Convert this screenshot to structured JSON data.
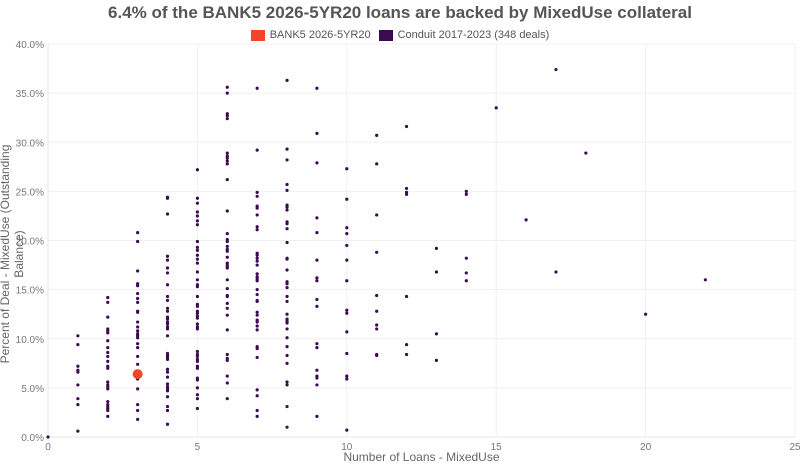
{
  "chart_data": {
    "type": "scatter",
    "title": "6.4% of the BANK5 2026-5YR20 loans are backed by MixedUse collateral",
    "xlabel": "Number of Loans - MixedUse",
    "ylabel": "Percent of Deal - MixedUse (Outstanding Balance)",
    "xlim": [
      0,
      25
    ],
    "ylim": [
      0,
      40
    ],
    "x_ticks": [
      "0",
      "5",
      "10",
      "15",
      "20",
      "25"
    ],
    "y_ticks": [
      "0.0%",
      "5.0%",
      "10.0%",
      "15.0%",
      "20.0%",
      "25.0%",
      "30.0%",
      "35.0%",
      "40.0%"
    ],
    "grid": true,
    "legend_position": "top",
    "series": [
      {
        "name": "BANK5 2026-5YR20",
        "color": "#f4452a",
        "points": [
          [
            3,
            6.4
          ]
        ]
      },
      {
        "name": "Conduit 2017-2023 (348 deals)",
        "color": "#3d0a52",
        "points": [
          [
            0,
            0.0
          ],
          [
            1,
            10.3
          ],
          [
            1,
            9.4
          ],
          [
            1,
            7.2
          ],
          [
            1,
            6.8
          ],
          [
            1,
            6.6
          ],
          [
            1,
            5.3
          ],
          [
            1,
            3.9
          ],
          [
            1,
            3.3
          ],
          [
            1,
            0.6
          ],
          [
            2,
            14.2
          ],
          [
            2,
            13.7
          ],
          [
            2,
            12.2
          ],
          [
            2,
            11.0
          ],
          [
            2,
            10.8
          ],
          [
            2,
            10.6
          ],
          [
            2,
            9.8
          ],
          [
            2,
            9.1
          ],
          [
            2,
            8.6
          ],
          [
            2,
            8.2
          ],
          [
            2,
            7.7
          ],
          [
            2,
            7.2
          ],
          [
            2,
            7.0
          ],
          [
            2,
            5.6
          ],
          [
            2,
            5.3
          ],
          [
            2,
            5.1
          ],
          [
            2,
            4.9
          ],
          [
            2,
            3.6
          ],
          [
            2,
            3.3
          ],
          [
            2,
            3.1
          ],
          [
            2,
            2.9
          ],
          [
            2,
            2.7
          ],
          [
            2,
            2.1
          ],
          [
            3,
            20.8
          ],
          [
            3,
            19.9
          ],
          [
            3,
            16.9
          ],
          [
            3,
            15.6
          ],
          [
            3,
            15.4
          ],
          [
            3,
            14.6
          ],
          [
            3,
            14.1
          ],
          [
            3,
            13.7
          ],
          [
            3,
            12.8
          ],
          [
            3,
            12.7
          ],
          [
            3,
            11.7
          ],
          [
            3,
            11.2
          ],
          [
            3,
            10.8
          ],
          [
            3,
            10.5
          ],
          [
            3,
            10.3
          ],
          [
            3,
            10.1
          ],
          [
            3,
            9.5
          ],
          [
            3,
            9.1
          ],
          [
            3,
            8.2
          ],
          [
            3,
            7.4
          ],
          [
            3,
            5.9
          ],
          [
            3,
            4.9
          ],
          [
            3,
            3.3
          ],
          [
            3,
            2.7
          ],
          [
            3,
            1.8
          ],
          [
            4,
            24.4
          ],
          [
            4,
            24.3
          ],
          [
            4,
            22.7
          ],
          [
            4,
            18.4
          ],
          [
            4,
            18.0
          ],
          [
            4,
            17.2
          ],
          [
            4,
            16.7
          ],
          [
            4,
            15.5
          ],
          [
            4,
            14.3
          ],
          [
            4,
            13.9
          ],
          [
            4,
            13.1
          ],
          [
            4,
            12.8
          ],
          [
            4,
            12.2
          ],
          [
            4,
            12.0
          ],
          [
            4,
            11.7
          ],
          [
            4,
            11.5
          ],
          [
            4,
            11.2
          ],
          [
            4,
            11.0
          ],
          [
            4,
            10.3
          ],
          [
            4,
            8.5
          ],
          [
            4,
            8.3
          ],
          [
            4,
            8.1
          ],
          [
            4,
            7.9
          ],
          [
            4,
            6.9
          ],
          [
            4,
            6.6
          ],
          [
            4,
            6.1
          ],
          [
            4,
            5.4
          ],
          [
            4,
            5.1
          ],
          [
            4,
            4.9
          ],
          [
            4,
            4.7
          ],
          [
            4,
            4.1
          ],
          [
            4,
            3.1
          ],
          [
            4,
            2.7
          ],
          [
            4,
            1.3
          ],
          [
            5,
            27.2
          ],
          [
            5,
            24.3
          ],
          [
            5,
            23.8
          ],
          [
            5,
            22.9
          ],
          [
            5,
            22.5
          ],
          [
            5,
            22.0
          ],
          [
            5,
            21.6
          ],
          [
            5,
            19.9
          ],
          [
            5,
            19.3
          ],
          [
            5,
            19.0
          ],
          [
            5,
            18.5
          ],
          [
            5,
            18.1
          ],
          [
            5,
            17.7
          ],
          [
            5,
            16.8
          ],
          [
            5,
            16.0
          ],
          [
            5,
            15.5
          ],
          [
            5,
            15.3
          ],
          [
            5,
            14.3
          ],
          [
            5,
            13.5
          ],
          [
            5,
            13.3
          ],
          [
            5,
            12.8
          ],
          [
            5,
            12.6
          ],
          [
            5,
            12.3
          ],
          [
            5,
            12.1
          ],
          [
            5,
            11.5
          ],
          [
            5,
            11.2
          ],
          [
            5,
            11.0
          ],
          [
            5,
            8.7
          ],
          [
            5,
            8.4
          ],
          [
            5,
            8.2
          ],
          [
            5,
            7.9
          ],
          [
            5,
            7.7
          ],
          [
            5,
            7.2
          ],
          [
            5,
            7.0
          ],
          [
            5,
            6.0
          ],
          [
            5,
            5.8
          ],
          [
            5,
            5.0
          ],
          [
            5,
            4.3
          ],
          [
            5,
            3.9
          ],
          [
            5,
            2.9
          ],
          [
            6,
            35.6
          ],
          [
            6,
            35.0
          ],
          [
            6,
            32.9
          ],
          [
            6,
            32.7
          ],
          [
            6,
            32.4
          ],
          [
            6,
            28.9
          ],
          [
            6,
            28.6
          ],
          [
            6,
            28.4
          ],
          [
            6,
            28.1
          ],
          [
            6,
            27.8
          ],
          [
            6,
            26.2
          ],
          [
            6,
            23.0
          ],
          [
            6,
            20.7
          ],
          [
            6,
            20.1
          ],
          [
            6,
            19.9
          ],
          [
            6,
            19.4
          ],
          [
            6,
            19.1
          ],
          [
            6,
            18.9
          ],
          [
            6,
            18.3
          ],
          [
            6,
            17.7
          ],
          [
            6,
            17.5
          ],
          [
            6,
            17.3
          ],
          [
            6,
            17.2
          ],
          [
            6,
            16.0
          ],
          [
            6,
            15.1
          ],
          [
            6,
            14.4
          ],
          [
            6,
            14.3
          ],
          [
            6,
            13.6
          ],
          [
            6,
            13.1
          ],
          [
            6,
            12.4
          ],
          [
            6,
            10.9
          ],
          [
            6,
            8.4
          ],
          [
            6,
            8.0
          ],
          [
            6,
            7.8
          ],
          [
            6,
            6.2
          ],
          [
            6,
            5.5
          ],
          [
            6,
            3.9
          ],
          [
            7,
            35.5
          ],
          [
            7,
            29.2
          ],
          [
            7,
            24.9
          ],
          [
            7,
            24.5
          ],
          [
            7,
            23.5
          ],
          [
            7,
            23.3
          ],
          [
            7,
            22.6
          ],
          [
            7,
            21.4
          ],
          [
            7,
            21.1
          ],
          [
            7,
            18.7
          ],
          [
            7,
            18.5
          ],
          [
            7,
            18.2
          ],
          [
            7,
            17.9
          ],
          [
            7,
            17.5
          ],
          [
            7,
            16.6
          ],
          [
            7,
            16.3
          ],
          [
            7,
            16.1
          ],
          [
            7,
            15.9
          ],
          [
            7,
            15.0
          ],
          [
            7,
            14.5
          ],
          [
            7,
            13.9
          ],
          [
            7,
            13.8
          ],
          [
            7,
            12.7
          ],
          [
            7,
            12.4
          ],
          [
            7,
            11.9
          ],
          [
            7,
            11.7
          ],
          [
            7,
            11.3
          ],
          [
            7,
            10.9
          ],
          [
            7,
            9.2
          ],
          [
            7,
            9.0
          ],
          [
            7,
            8.1
          ],
          [
            7,
            4.8
          ],
          [
            7,
            4.2
          ],
          [
            7,
            2.7
          ],
          [
            7,
            2.1
          ],
          [
            8,
            36.3
          ],
          [
            8,
            29.3
          ],
          [
            8,
            28.2
          ],
          [
            8,
            25.7
          ],
          [
            8,
            25.1
          ],
          [
            8,
            23.6
          ],
          [
            8,
            23.4
          ],
          [
            8,
            23.1
          ],
          [
            8,
            21.9
          ],
          [
            8,
            21.7
          ],
          [
            8,
            21.2
          ],
          [
            8,
            19.8
          ],
          [
            8,
            18.2
          ],
          [
            8,
            18.1
          ],
          [
            8,
            17.0
          ],
          [
            8,
            15.8
          ],
          [
            8,
            15.6
          ],
          [
            8,
            15.2
          ],
          [
            8,
            14.3
          ],
          [
            8,
            13.8
          ],
          [
            8,
            12.5
          ],
          [
            8,
            12.0
          ],
          [
            8,
            11.8
          ],
          [
            8,
            11.6
          ],
          [
            8,
            11.0
          ],
          [
            8,
            10.1
          ],
          [
            8,
            9.2
          ],
          [
            8,
            8.3
          ],
          [
            8,
            7.5
          ],
          [
            8,
            5.6
          ],
          [
            8,
            5.3
          ],
          [
            8,
            3.1
          ],
          [
            8,
            1.0
          ],
          [
            9,
            35.5
          ],
          [
            9,
            30.9
          ],
          [
            9,
            27.9
          ],
          [
            9,
            22.3
          ],
          [
            9,
            20.8
          ],
          [
            9,
            18.0
          ],
          [
            9,
            16.2
          ],
          [
            9,
            15.9
          ],
          [
            9,
            14.0
          ],
          [
            9,
            13.3
          ],
          [
            9,
            9.5
          ],
          [
            9,
            9.1
          ],
          [
            9,
            6.8
          ],
          [
            9,
            6.2
          ],
          [
            9,
            6.0
          ],
          [
            9,
            5.3
          ],
          [
            9,
            2.1
          ],
          [
            10,
            27.3
          ],
          [
            10,
            24.2
          ],
          [
            10,
            21.3
          ],
          [
            10,
            20.7
          ],
          [
            10,
            19.5
          ],
          [
            10,
            18.0
          ],
          [
            10,
            15.9
          ],
          [
            10,
            12.9
          ],
          [
            10,
            12.6
          ],
          [
            10,
            10.7
          ],
          [
            10,
            8.5
          ],
          [
            10,
            6.2
          ],
          [
            10,
            5.9
          ],
          [
            10,
            0.7
          ],
          [
            11,
            30.7
          ],
          [
            11,
            27.8
          ],
          [
            11,
            22.6
          ],
          [
            11,
            18.8
          ],
          [
            11,
            14.4
          ],
          [
            11,
            12.8
          ],
          [
            11,
            11.4
          ],
          [
            11,
            11.0
          ],
          [
            11,
            8.4
          ],
          [
            11,
            8.3
          ],
          [
            12,
            31.6
          ],
          [
            12,
            25.3
          ],
          [
            12,
            24.9
          ],
          [
            12,
            24.7
          ],
          [
            12,
            14.3
          ],
          [
            12,
            9.4
          ],
          [
            12,
            8.4
          ],
          [
            13,
            19.2
          ],
          [
            13,
            16.8
          ],
          [
            13,
            10.5
          ],
          [
            13,
            7.8
          ],
          [
            14,
            25.0
          ],
          [
            14,
            24.7
          ],
          [
            14,
            18.2
          ],
          [
            14,
            16.7
          ],
          [
            14,
            15.9
          ],
          [
            15,
            33.5
          ],
          [
            16,
            22.1
          ],
          [
            17,
            37.4
          ],
          [
            17,
            16.8
          ],
          [
            18,
            28.9
          ],
          [
            20,
            12.5
          ],
          [
            22,
            16.0
          ]
        ]
      }
    ]
  },
  "legend": {
    "items": [
      {
        "label": "BANK5 2026-5YR20",
        "color": "#f4452a"
      },
      {
        "label": "Conduit 2017-2023 (348 deals)",
        "color": "#3d0a52"
      }
    ]
  }
}
